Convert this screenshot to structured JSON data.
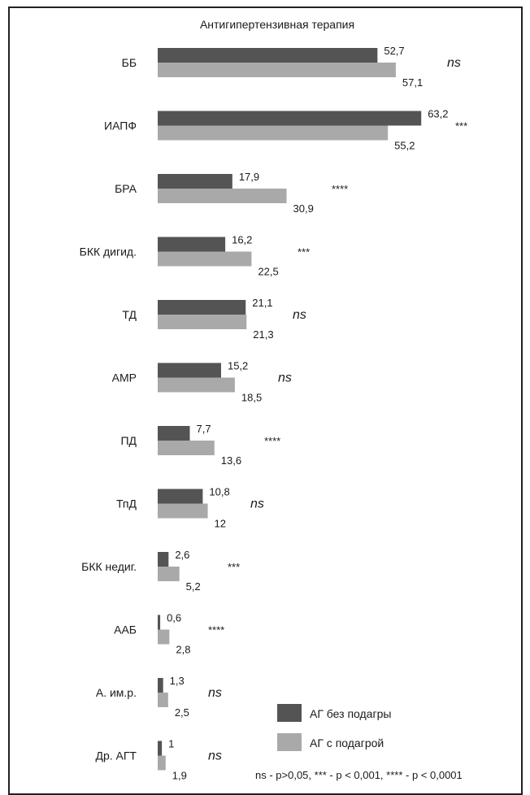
{
  "chart_data": {
    "type": "bar",
    "title": "Антигипертензивная терапия",
    "categories": [
      "ББ",
      "ИАПФ",
      "БРА",
      "БКК дигид.",
      "ТД",
      "АМР",
      "ПД",
      "ТпД",
      "БКК недиг.",
      "ААБ",
      "А. им.р.",
      "Др. АГТ"
    ],
    "series": [
      {
        "name": "АГ без подагры",
        "values": [
          52.7,
          63.2,
          17.9,
          16.2,
          21.1,
          15.2,
          7.7,
          10.8,
          2.6,
          0.6,
          1.3,
          1.0
        ],
        "labels": [
          "52,7",
          "63,2",
          "17,9",
          "16,2",
          "21,1",
          "15,2",
          "7,7",
          "10,8",
          "2,6",
          "0,6",
          "1,3",
          "1"
        ],
        "color": "#545454"
      },
      {
        "name": "АГ с подагрой",
        "values": [
          57.1,
          55.2,
          30.9,
          22.5,
          21.3,
          18.5,
          13.6,
          12.0,
          5.2,
          2.8,
          2.5,
          1.9
        ],
        "labels": [
          "57,1",
          "55,2",
          "30,9",
          "22,5",
          "21,3",
          "18,5",
          "13,6",
          "12",
          "5,2",
          "2,8",
          "2,5",
          "1,9"
        ],
        "color": "#a9a9a9"
      }
    ],
    "significance": [
      "ns",
      "***",
      "****",
      "***",
      "ns",
      "ns",
      "****",
      "ns",
      "***",
      "****",
      "ns",
      "ns"
    ],
    "footnote": "ns - p>0,05, *** - p < 0,001, **** - p < 0,0001",
    "xlim": [
      0,
      65
    ],
    "legend": "bottom-right",
    "grid": false,
    "orientation": "horizontal"
  }
}
